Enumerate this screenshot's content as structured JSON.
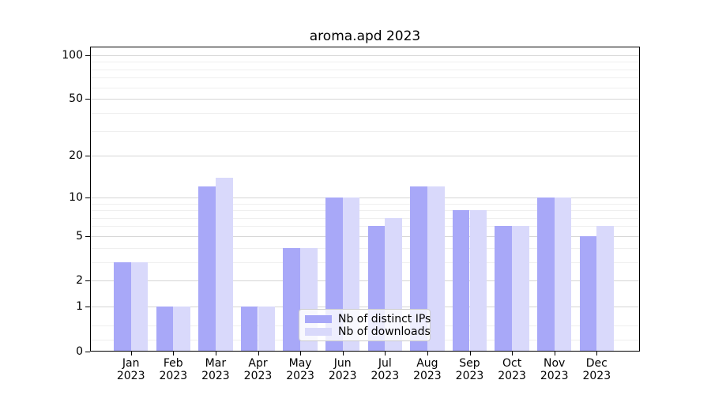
{
  "title": "aroma.apd 2023",
  "legend": {
    "items": [
      {
        "label": "Nb of distinct IPs",
        "color": "#a8a8f8"
      },
      {
        "label": "Nb of downloads",
        "color": "#d9d9fb"
      }
    ]
  },
  "colors": {
    "distinct_ips_bar": "#a8a8f8",
    "downloads_bar": "#d9d9fb",
    "grid_major": "#d6d6d6",
    "grid_minor": "#efefef",
    "axis": "#000000"
  },
  "chart_data": {
    "type": "bar",
    "title": "aroma.apd 2023",
    "categories": [
      "Jan 2023",
      "Feb 2023",
      "Mar 2023",
      "Apr 2023",
      "May 2023",
      "Jun 2023",
      "Jul 2023",
      "Aug 2023",
      "Sep 2023",
      "Oct 2023",
      "Nov 2023",
      "Dec 2023"
    ],
    "month_labels": [
      "Jan",
      "Feb",
      "Mar",
      "Apr",
      "May",
      "Jun",
      "Jul",
      "Aug",
      "Sep",
      "Oct",
      "Nov",
      "Dec"
    ],
    "year_label": "2023",
    "series": [
      {
        "name": "Nb of distinct IPs",
        "color": "#a8a8f8",
        "values": [
          3,
          1,
          12,
          1,
          4,
          10,
          6,
          12,
          8,
          6,
          10,
          5
        ]
      },
      {
        "name": "Nb of downloads",
        "color": "#d9d9fb",
        "values": [
          3,
          1,
          14,
          1,
          4,
          10,
          7,
          12,
          8,
          6,
          10,
          6
        ]
      }
    ],
    "xlabel": "",
    "ylabel": "",
    "y_scale": "log1p",
    "y_ticks": [
      0,
      1,
      2,
      5,
      10,
      20,
      50,
      100
    ],
    "y_minor_gridlines": [
      0.2,
      0.5,
      3,
      4,
      6,
      7,
      8,
      9,
      30,
      40,
      60,
      70,
      80,
      90
    ],
    "ylim": [
      0,
      110
    ],
    "grid": true,
    "legend_position": "lower center"
  }
}
